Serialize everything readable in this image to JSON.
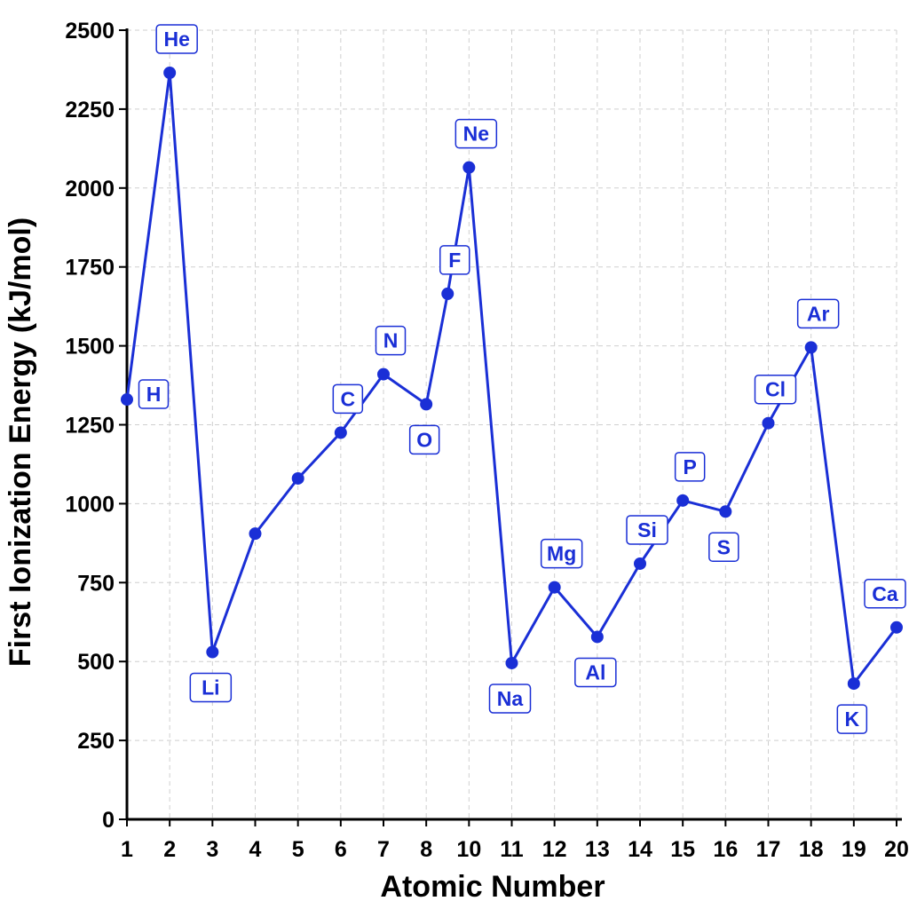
{
  "chart_data": {
    "type": "line",
    "xlabel": "Atomic Number",
    "ylabel": "First Ionization Energy (kJ/mol)",
    "ylim": [
      0,
      2500
    ],
    "yticks": [
      0,
      250,
      500,
      750,
      1000,
      1250,
      1500,
      1750,
      2000,
      2250,
      2500
    ],
    "xticks": [
      1,
      2,
      3,
      4,
      5,
      6,
      7,
      8,
      10,
      11,
      12,
      13,
      14,
      15,
      16,
      17,
      18,
      19,
      20
    ],
    "grid": true,
    "color": "#1a2fd6",
    "series": [
      {
        "x": [
          1,
          2,
          3,
          4,
          5,
          6,
          7,
          8,
          9,
          10,
          11,
          12,
          13,
          14,
          15,
          16,
          17,
          18,
          19,
          20
        ],
        "values": [
          1330,
          2365,
          530,
          905,
          1080,
          1225,
          1410,
          1315,
          1665,
          2065,
          495,
          735,
          578,
          810,
          1010,
          975,
          1255,
          1495,
          430,
          608
        ],
        "labels": [
          "H",
          "He",
          "Li",
          "",
          "",
          "C",
          "N",
          "O",
          "F",
          "Ne",
          "Na",
          "Mg",
          "Al",
          "Si",
          "P",
          "S",
          "Cl",
          "Ar",
          "K",
          "Ca"
        ]
      }
    ]
  }
}
